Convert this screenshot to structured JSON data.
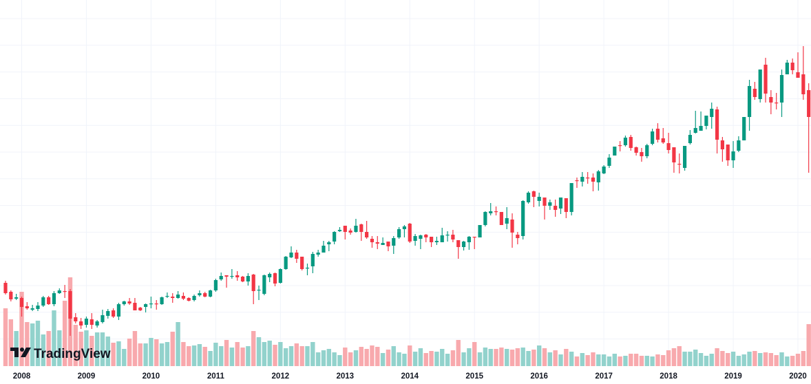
{
  "chart_data": {
    "type": "candlestick",
    "interval": "monthly",
    "title": "",
    "xlabel": "",
    "ylabel": "",
    "price_axis_visible": false,
    "grid": true,
    "colors": {
      "up": "#089981",
      "down": "#f23645",
      "volume_up": "#92d2cc",
      "volume_down": "#f8a9ad",
      "grid": "#f0f3fa"
    },
    "x_ticks": [
      "2008",
      "2009",
      "2010",
      "2011",
      "2012",
      "2013",
      "2014",
      "2015",
      "2016",
      "2017",
      "2018",
      "2019",
      "2020"
    ],
    "x_tick_candle_index": [
      3,
      15,
      27,
      39,
      51,
      63,
      75,
      87,
      99,
      111,
      123,
      135,
      147
    ],
    "ohlc_fields": [
      "open",
      "high",
      "low",
      "close"
    ],
    "ohlc": [
      [
        89,
        92,
        72,
        74
      ],
      [
        76,
        78,
        62,
        65
      ],
      [
        66,
        73,
        64,
        68
      ],
      [
        67,
        69,
        40,
        54
      ],
      [
        55,
        61,
        50,
        52
      ],
      [
        50,
        57,
        48,
        52
      ],
      [
        51,
        61,
        48,
        56
      ],
      [
        56,
        70,
        54,
        68
      ],
      [
        68,
        70,
        57,
        58
      ],
      [
        58,
        77,
        55,
        74
      ],
      [
        74,
        81,
        73,
        78
      ],
      [
        77,
        86,
        67,
        76
      ],
      [
        77,
        80,
        12,
        37
      ],
      [
        39,
        45,
        30,
        33
      ],
      [
        33,
        38,
        22,
        27
      ],
      [
        28,
        40,
        24,
        37
      ],
      [
        36,
        45,
        22,
        28
      ],
      [
        27,
        35,
        24,
        33
      ],
      [
        32,
        50,
        30,
        42
      ],
      [
        41,
        51,
        37,
        48
      ],
      [
        49,
        52,
        38,
        40
      ],
      [
        40,
        60,
        35,
        58
      ],
      [
        58,
        63,
        56,
        62
      ],
      [
        62,
        67,
        57,
        59
      ],
      [
        60,
        67,
        49,
        49
      ],
      [
        53,
        54,
        48,
        49
      ],
      [
        54,
        59,
        46,
        58
      ],
      [
        58,
        69,
        52,
        59
      ],
      [
        59,
        64,
        50,
        58
      ],
      [
        58,
        69,
        57,
        68
      ],
      [
        69,
        75,
        67,
        70
      ],
      [
        69,
        74,
        60,
        67
      ],
      [
        67,
        77,
        66,
        72
      ],
      [
        70,
        75,
        64,
        66
      ],
      [
        67,
        68,
        62,
        63
      ],
      [
        64,
        72,
        62,
        70
      ],
      [
        71,
        78,
        69,
        74
      ],
      [
        74,
        76,
        68,
        69
      ],
      [
        69,
        79,
        68,
        78
      ],
      [
        78,
        95,
        76,
        93
      ],
      [
        94,
        104,
        92,
        99
      ],
      [
        100,
        100,
        82,
        98
      ],
      [
        98,
        109,
        95,
        99
      ],
      [
        100,
        106,
        92,
        97
      ],
      [
        98,
        99,
        90,
        91
      ],
      [
        91,
        103,
        85,
        99
      ],
      [
        101,
        102,
        58,
        77
      ],
      [
        78,
        85,
        64,
        79
      ],
      [
        73,
        101,
        71,
        100
      ],
      [
        97,
        104,
        90,
        102
      ],
      [
        103,
        104,
        84,
        88
      ],
      [
        89,
        110,
        88,
        109
      ],
      [
        109,
        128,
        108,
        127
      ],
      [
        126,
        142,
        125,
        133
      ],
      [
        133,
        137,
        118,
        124
      ],
      [
        127,
        127,
        107,
        109
      ],
      [
        110,
        117,
        100,
        111
      ],
      [
        113,
        134,
        103,
        131
      ],
      [
        130,
        137,
        127,
        133
      ],
      [
        133,
        150,
        133,
        143
      ],
      [
        145,
        150,
        135,
        148
      ],
      [
        149,
        164,
        145,
        163
      ],
      [
        164,
        170,
        163,
        166
      ],
      [
        172,
        172,
        152,
        163
      ],
      [
        165,
        168,
        159,
        162
      ],
      [
        163,
        182,
        162,
        172
      ],
      [
        174,
        175,
        150,
        163
      ],
      [
        163,
        179,
        153,
        155
      ],
      [
        153,
        157,
        140,
        148
      ],
      [
        148,
        157,
        138,
        146
      ],
      [
        144,
        155,
        144,
        147
      ],
      [
        149,
        149,
        135,
        142
      ],
      [
        143,
        157,
        131,
        154
      ],
      [
        155,
        170,
        153,
        167
      ],
      [
        167,
        173,
        155,
        171
      ],
      [
        175,
        176,
        147,
        149
      ],
      [
        150,
        160,
        143,
        157
      ],
      [
        153,
        159,
        138,
        158
      ],
      [
        159,
        160,
        148,
        155
      ],
      [
        156,
        156,
        141,
        148
      ],
      [
        148,
        156,
        144,
        150
      ],
      [
        148,
        169,
        148,
        158
      ],
      [
        158,
        164,
        149,
        159
      ],
      [
        159,
        166,
        148,
        152
      ],
      [
        151,
        151,
        124,
        141
      ],
      [
        141,
        150,
        136,
        149
      ],
      [
        148,
        157,
        137,
        156
      ],
      [
        156,
        156,
        138,
        155
      ],
      [
        155,
        173,
        155,
        173
      ],
      [
        173,
        193,
        171,
        192
      ],
      [
        190,
        205,
        187,
        193
      ],
      [
        193,
        200,
        187,
        192
      ],
      [
        192,
        192,
        173,
        173
      ],
      [
        175,
        199,
        167,
        183
      ],
      [
        181,
        190,
        140,
        162
      ],
      [
        159,
        163,
        145,
        154
      ],
      [
        157,
        209,
        152,
        208
      ],
      [
        206,
        222,
        204,
        220
      ],
      [
        222,
        223,
        199,
        214
      ],
      [
        208,
        220,
        200,
        214
      ],
      [
        213,
        213,
        181,
        201
      ],
      [
        201,
        210,
        195,
        206
      ],
      [
        201,
        210,
        185,
        195
      ],
      [
        197,
        213,
        189,
        213
      ],
      [
        212,
        212,
        183,
        192
      ],
      [
        192,
        234,
        187,
        234
      ],
      [
        238,
        242,
        227,
        237
      ],
      [
        236,
        250,
        229,
        243
      ],
      [
        242,
        250,
        233,
        241
      ],
      [
        242,
        248,
        222,
        236
      ],
      [
        235,
        253,
        223,
        251
      ],
      [
        248,
        260,
        247,
        258
      ],
      [
        259,
        276,
        256,
        271
      ],
      [
        274,
        287,
        274,
        287
      ],
      [
        289,
        295,
        280,
        288
      ],
      [
        289,
        303,
        287,
        300
      ],
      [
        301,
        304,
        281,
        285
      ],
      [
        286,
        287,
        274,
        278
      ],
      [
        279,
        285,
        265,
        273
      ],
      [
        273,
        291,
        270,
        289
      ],
      [
        291,
        313,
        289,
        309
      ],
      [
        313,
        321,
        293,
        297
      ],
      [
        299,
        314,
        291,
        293
      ],
      [
        292,
        307,
        277,
        282
      ],
      [
        286,
        286,
        249,
        264
      ],
      [
        262,
        277,
        248,
        261
      ],
      [
        256,
        288,
        252,
        288
      ],
      [
        292,
        311,
        290,
        304
      ],
      [
        307,
        339,
        306,
        314
      ],
      [
        310,
        338,
        310,
        317
      ],
      [
        317,
        332,
        312,
        332
      ],
      [
        330,
        351,
        313,
        342
      ],
      [
        341,
        345,
        277,
        297
      ],
      [
        296,
        301,
        265,
        283
      ],
      [
        290,
        290,
        259,
        267
      ],
      [
        267,
        295,
        256,
        280
      ],
      [
        281,
        302,
        279,
        296
      ],
      [
        296,
        330,
        296,
        330
      ],
      [
        330,
        384,
        310,
        375
      ],
      [
        371,
        381,
        355,
        359
      ],
      [
        356,
        399,
        351,
        399
      ],
      [
        406,
        416,
        351,
        364
      ],
      [
        359,
        369,
        334,
        351
      ],
      [
        351,
        365,
        341,
        350
      ],
      [
        351,
        399,
        330,
        391
      ],
      [
        392,
        413,
        392,
        409
      ],
      [
        409,
        415,
        392,
        398
      ],
      [
        395,
        424,
        387,
        387
      ],
      [
        392,
        433,
        355,
        363
      ],
      [
        369,
        379,
        249,
        330
      ]
    ],
    "volume": [
      84,
      68,
      51,
      108,
      64,
      62,
      66,
      46,
      51,
      81,
      52,
      95,
      129,
      60,
      50,
      52,
      44,
      49,
      49,
      43,
      34,
      36,
      25,
      40,
      51,
      33,
      33,
      41,
      39,
      33,
      35,
      50,
      64,
      35,
      29,
      30,
      32,
      28,
      22,
      34,
      29,
      38,
      27,
      35,
      27,
      29,
      51,
      42,
      35,
      37,
      31,
      35,
      26,
      29,
      33,
      29,
      29,
      35,
      20,
      23,
      25,
      20,
      16,
      27,
      20,
      23,
      28,
      25,
      30,
      28,
      19,
      24,
      29,
      20,
      18,
      30,
      21,
      26,
      19,
      22,
      21,
      25,
      18,
      23,
      38,
      20,
      26,
      35,
      20,
      27,
      25,
      25,
      27,
      25,
      24,
      26,
      27,
      22,
      24,
      30,
      26,
      20,
      23,
      17,
      25,
      21,
      14,
      19,
      16,
      20,
      17,
      17,
      14,
      18,
      14,
      15,
      18,
      18,
      15,
      15,
      14,
      17,
      16,
      23,
      26,
      29,
      21,
      21,
      24,
      19,
      15,
      18,
      26,
      22,
      19,
      21,
      15,
      17,
      21,
      22,
      19,
      20,
      19,
      16,
      20,
      14,
      15,
      18,
      22,
      61
    ]
  },
  "branding": {
    "logo_text": "TradingView"
  }
}
